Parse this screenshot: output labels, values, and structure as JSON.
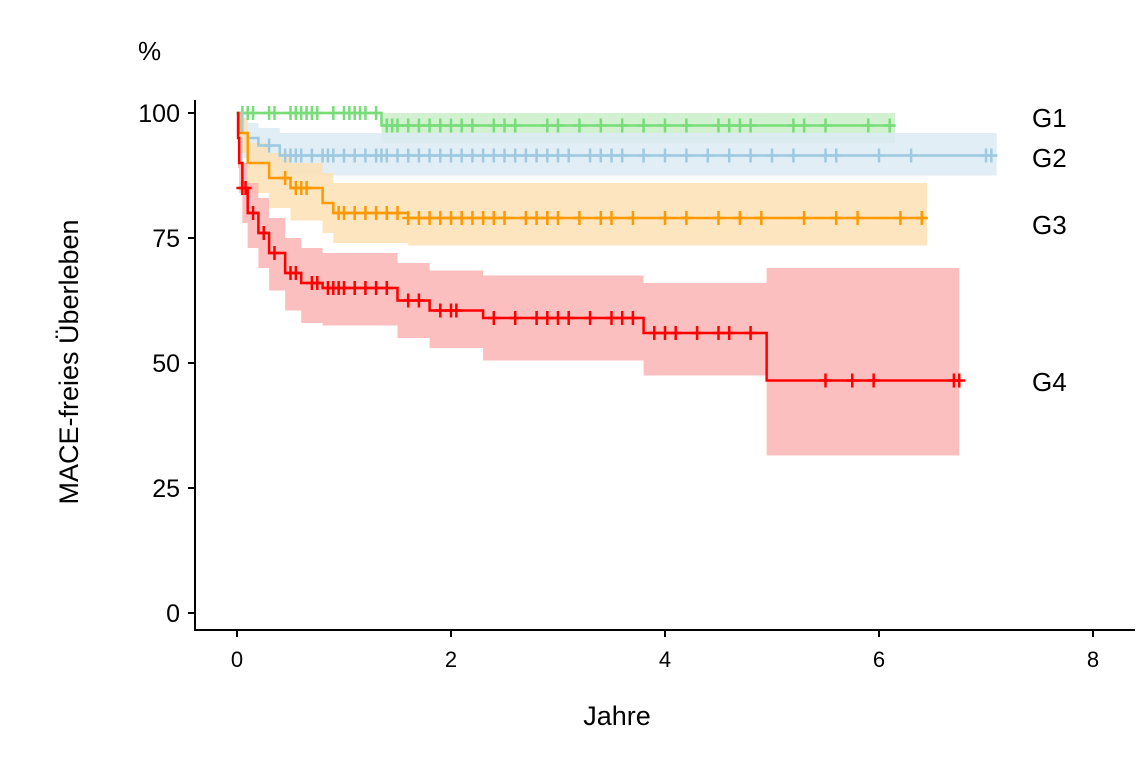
{
  "chart_data": {
    "type": "line",
    "subtype": "kaplan-meier",
    "title": "",
    "ylabel_unit": "%",
    "ylabel": "MACE-freies Überleben",
    "xlabel": "Jahre",
    "xlim": [
      0,
      8
    ],
    "ylim": [
      0,
      100
    ],
    "xticks": [
      "0",
      "2",
      "4",
      "6",
      "8"
    ],
    "yticks": [
      "0",
      "25",
      "50",
      "75",
      "100"
    ],
    "grid": false,
    "legend": "direct labels right of curves",
    "series": [
      {
        "name": "G1",
        "color": "#77dd77",
        "band": "#c9efc9",
        "end": 6.15,
        "steps": [
          [
            0,
            100,
            100,
            100
          ],
          [
            1.35,
            97.5,
            94,
            100
          ]
        ],
        "censored": [
          0.05,
          0.1,
          0.15,
          0.3,
          0.35,
          0.5,
          0.55,
          0.6,
          0.65,
          0.7,
          0.75,
          0.9,
          1.0,
          1.05,
          1.1,
          1.15,
          1.2,
          1.3,
          1.4,
          1.45,
          1.5,
          1.6,
          1.7,
          1.8,
          1.9,
          2.0,
          2.1,
          2.2,
          2.4,
          2.5,
          2.6,
          2.9,
          3.0,
          3.2,
          3.4,
          3.6,
          3.8,
          4.0,
          4.2,
          4.5,
          4.6,
          4.7,
          4.8,
          5.2,
          5.3,
          5.5,
          5.9,
          6.1
        ]
      },
      {
        "name": "G2",
        "color": "#9ecae1",
        "band": "#dcebf5",
        "end": 7.1,
        "steps": [
          [
            0,
            100,
            100,
            100
          ],
          [
            0.05,
            96,
            91,
            99
          ],
          [
            0.1,
            95,
            90,
            98
          ],
          [
            0.2,
            93.5,
            89,
            97
          ],
          [
            0.4,
            91.5,
            87.5,
            96
          ]
        ],
        "censored": [
          0.3,
          0.45,
          0.5,
          0.55,
          0.6,
          0.7,
          0.8,
          0.85,
          0.9,
          1.0,
          1.1,
          1.2,
          1.3,
          1.35,
          1.4,
          1.5,
          1.6,
          1.7,
          1.8,
          1.9,
          2.0,
          2.1,
          2.2,
          2.3,
          2.4,
          2.5,
          2.6,
          2.7,
          2.8,
          2.9,
          3.0,
          3.1,
          3.3,
          3.4,
          3.5,
          3.6,
          3.8,
          4.0,
          4.2,
          4.4,
          4.6,
          4.8,
          5.0,
          5.2,
          5.5,
          5.6,
          6.0,
          6.3,
          7.0,
          7.05
        ]
      },
      {
        "name": "G3",
        "color": "#ff9900",
        "band": "#fde1b4",
        "end": 6.45,
        "steps": [
          [
            0,
            100,
            100,
            100
          ],
          [
            0.02,
            96,
            92,
            99
          ],
          [
            0.1,
            90,
            84,
            94
          ],
          [
            0.3,
            87,
            81,
            92
          ],
          [
            0.5,
            85,
            78.5,
            90
          ],
          [
            0.8,
            82,
            76,
            88
          ],
          [
            0.9,
            80,
            74,
            86
          ],
          [
            1.6,
            79,
            73.5,
            86
          ]
        ],
        "censored": [
          0.45,
          0.55,
          0.6,
          0.65,
          0.95,
          1.0,
          1.1,
          1.2,
          1.3,
          1.4,
          1.5,
          1.6,
          1.7,
          1.8,
          1.9,
          2.0,
          2.1,
          2.2,
          2.3,
          2.4,
          2.5,
          2.7,
          2.8,
          2.9,
          3.0,
          3.2,
          3.4,
          3.5,
          3.7,
          4.0,
          4.2,
          4.5,
          4.7,
          4.9,
          5.3,
          5.6,
          5.8,
          6.2,
          6.4
        ]
      },
      {
        "name": "G4",
        "color": "#ff0000",
        "band": "#fbb4b4",
        "end": 6.75,
        "steps": [
          [
            0,
            100,
            100,
            100
          ],
          [
            0.01,
            95,
            89,
            99
          ],
          [
            0.02,
            90,
            84,
            95
          ],
          [
            0.05,
            85,
            78,
            90
          ],
          [
            0.1,
            80,
            73,
            86
          ],
          [
            0.2,
            76,
            69,
            83
          ],
          [
            0.3,
            72,
            64.5,
            79
          ],
          [
            0.45,
            68,
            60.5,
            75
          ],
          [
            0.6,
            66,
            58,
            73
          ],
          [
            0.8,
            65,
            57.5,
            72
          ],
          [
            1.5,
            62.5,
            55,
            70
          ],
          [
            1.8,
            60.5,
            53,
            68.5
          ],
          [
            2.3,
            59,
            50.5,
            67.5
          ],
          [
            3.8,
            56,
            47.5,
            66
          ],
          [
            4.95,
            46.5,
            31.5,
            69
          ]
        ],
        "censored": [
          0.05,
          0.08,
          0.15,
          0.25,
          0.35,
          0.5,
          0.55,
          0.7,
          0.75,
          0.85,
          0.9,
          0.95,
          1.0,
          1.1,
          1.2,
          1.3,
          1.4,
          1.6,
          1.7,
          1.9,
          2.0,
          2.05,
          2.4,
          2.6,
          2.8,
          2.9,
          3.0,
          3.1,
          3.3,
          3.5,
          3.6,
          3.7,
          3.9,
          4.0,
          4.1,
          4.3,
          4.5,
          4.6,
          4.8,
          5.5,
          5.75,
          5.95,
          6.7,
          6.75
        ]
      }
    ]
  }
}
